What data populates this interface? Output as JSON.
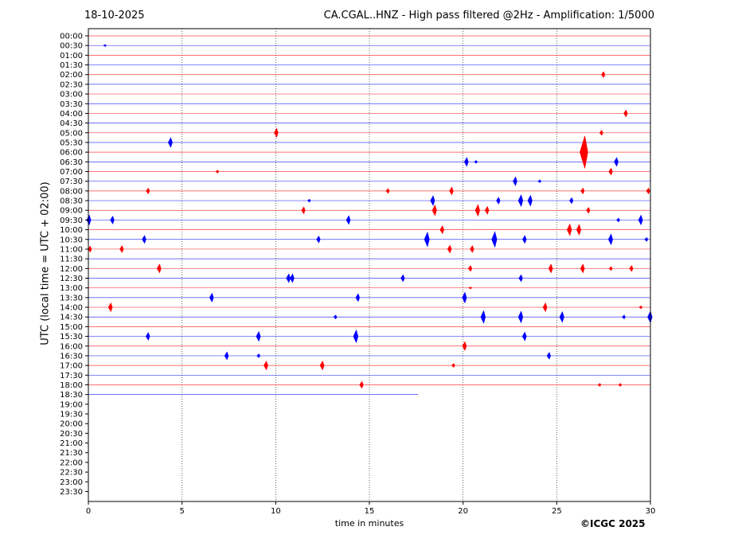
{
  "header": {
    "date": "18-10-2025",
    "title": "CA.CGAL..HNZ - High pass filtered @2Hz - Amplification: 1/5000"
  },
  "footer": {
    "copyright": "©ICGC 2025"
  },
  "chart_data": {
    "type": "line",
    "title": "CA.CGAL..HNZ - High pass filtered @2Hz - Amplification: 1/5000",
    "xlabel": "time in minutes",
    "ylabel": "UTC (local time = UTC + 02:00)",
    "xlim": [
      0,
      30
    ],
    "xticks": [
      0,
      5,
      10,
      15,
      20,
      25,
      30
    ],
    "vertical_gridlines": [
      5,
      10,
      15,
      20,
      25
    ],
    "grid": "vertical dotted",
    "colors": {
      "even_row": "#ff0000",
      "odd_row": "#0000ff"
    },
    "rows": [
      "00:00",
      "00:30",
      "01:00",
      "01:30",
      "02:00",
      "02:30",
      "03:00",
      "03:30",
      "04:00",
      "04:30",
      "05:00",
      "05:30",
      "06:00",
      "06:30",
      "07:00",
      "07:30",
      "08:00",
      "08:30",
      "09:00",
      "09:30",
      "10:00",
      "10:30",
      "11:00",
      "11:30",
      "12:00",
      "12:30",
      "13:00",
      "13:30",
      "14:00",
      "14:30",
      "15:00",
      "15:30",
      "16:00",
      "16:30",
      "17:00",
      "17:30",
      "18:00",
      "18:30",
      "19:00",
      "19:30",
      "20:00",
      "20:30",
      "21:00",
      "21:30",
      "22:00",
      "22:30",
      "23:00",
      "23:30"
    ],
    "recorded_until": {
      "row": "18:30",
      "minute": 17.6
    },
    "events": [
      {
        "row": "00:30",
        "minute": 0.9,
        "amp": 0.1
      },
      {
        "row": "02:00",
        "minute": 27.5,
        "amp": 0.3
      },
      {
        "row": "04:00",
        "minute": 28.7,
        "amp": 0.35
      },
      {
        "row": "05:00",
        "minute": 10.05,
        "amp": 0.45
      },
      {
        "row": "05:00",
        "minute": 27.4,
        "amp": 0.25
      },
      {
        "row": "05:30",
        "minute": 4.4,
        "amp": 0.5
      },
      {
        "row": "06:00",
        "minute": 26.5,
        "amp": 1.7
      },
      {
        "row": "06:30",
        "minute": 20.2,
        "amp": 0.45
      },
      {
        "row": "06:30",
        "minute": 20.7,
        "amp": 0.15
      },
      {
        "row": "06:30",
        "minute": 28.2,
        "amp": 0.45
      },
      {
        "row": "07:00",
        "minute": 6.9,
        "amp": 0.15
      },
      {
        "row": "07:00",
        "minute": 27.9,
        "amp": 0.35
      },
      {
        "row": "07:30",
        "minute": 22.8,
        "amp": 0.45
      },
      {
        "row": "07:30",
        "minute": 24.1,
        "amp": 0.15
      },
      {
        "row": "08:00",
        "minute": 3.2,
        "amp": 0.3
      },
      {
        "row": "08:00",
        "minute": 16.0,
        "amp": 0.25
      },
      {
        "row": "08:00",
        "minute": 19.4,
        "amp": 0.4
      },
      {
        "row": "08:00",
        "minute": 26.4,
        "amp": 0.3
      },
      {
        "row": "08:00",
        "minute": 29.9,
        "amp": 0.3
      },
      {
        "row": "08:30",
        "minute": 11.8,
        "amp": 0.15
      },
      {
        "row": "08:30",
        "minute": 18.4,
        "amp": 0.5
      },
      {
        "row": "08:30",
        "minute": 21.9,
        "amp": 0.35
      },
      {
        "row": "08:30",
        "minute": 23.1,
        "amp": 0.6
      },
      {
        "row": "08:30",
        "minute": 23.6,
        "amp": 0.55
      },
      {
        "row": "08:30",
        "minute": 25.8,
        "amp": 0.3
      },
      {
        "row": "09:00",
        "minute": 11.5,
        "amp": 0.35
      },
      {
        "row": "09:00",
        "minute": 18.5,
        "amp": 0.55
      },
      {
        "row": "09:00",
        "minute": 20.8,
        "amp": 0.6
      },
      {
        "row": "09:00",
        "minute": 21.3,
        "amp": 0.4
      },
      {
        "row": "09:00",
        "minute": 26.7,
        "amp": 0.3
      },
      {
        "row": "09:30",
        "minute": 0.05,
        "amp": 0.5
      },
      {
        "row": "09:30",
        "minute": 1.3,
        "amp": 0.4
      },
      {
        "row": "09:30",
        "minute": 13.9,
        "amp": 0.45
      },
      {
        "row": "09:30",
        "minute": 28.3,
        "amp": 0.2
      },
      {
        "row": "09:30",
        "minute": 29.5,
        "amp": 0.5
      },
      {
        "row": "10:00",
        "minute": 18.9,
        "amp": 0.4
      },
      {
        "row": "10:00",
        "minute": 25.7,
        "amp": 0.6
      },
      {
        "row": "10:00",
        "minute": 26.2,
        "amp": 0.55
      },
      {
        "row": "10:30",
        "minute": 3.0,
        "amp": 0.4
      },
      {
        "row": "10:30",
        "minute": 12.3,
        "amp": 0.35
      },
      {
        "row": "10:30",
        "minute": 18.1,
        "amp": 0.75
      },
      {
        "row": "10:30",
        "minute": 21.7,
        "amp": 0.8
      },
      {
        "row": "10:30",
        "minute": 23.3,
        "amp": 0.4
      },
      {
        "row": "10:30",
        "minute": 27.9,
        "amp": 0.55
      },
      {
        "row": "10:30",
        "minute": 29.8,
        "amp": 0.2
      },
      {
        "row": "11:00",
        "minute": 0.1,
        "amp": 0.3
      },
      {
        "row": "11:00",
        "minute": 1.8,
        "amp": 0.35
      },
      {
        "row": "11:00",
        "minute": 19.3,
        "amp": 0.4
      },
      {
        "row": "11:00",
        "minute": 20.5,
        "amp": 0.35
      },
      {
        "row": "12:00",
        "minute": 3.8,
        "amp": 0.45
      },
      {
        "row": "12:00",
        "minute": 20.4,
        "amp": 0.3
      },
      {
        "row": "12:00",
        "minute": 24.7,
        "amp": 0.45
      },
      {
        "row": "12:00",
        "minute": 26.4,
        "amp": 0.45
      },
      {
        "row": "12:00",
        "minute": 27.9,
        "amp": 0.2
      },
      {
        "row": "12:00",
        "minute": 29.0,
        "amp": 0.3
      },
      {
        "row": "12:30",
        "minute": 10.7,
        "amp": 0.45
      },
      {
        "row": "12:30",
        "minute": 10.9,
        "amp": 0.45
      },
      {
        "row": "12:30",
        "minute": 16.8,
        "amp": 0.35
      },
      {
        "row": "12:30",
        "minute": 23.1,
        "amp": 0.35
      },
      {
        "row": "13:00",
        "minute": 20.4,
        "amp": 0.1
      },
      {
        "row": "13:30",
        "minute": 6.6,
        "amp": 0.45
      },
      {
        "row": "13:30",
        "minute": 14.4,
        "amp": 0.4
      },
      {
        "row": "13:30",
        "minute": 20.1,
        "amp": 0.55
      },
      {
        "row": "14:00",
        "minute": 1.2,
        "amp": 0.45
      },
      {
        "row": "14:00",
        "minute": 24.4,
        "amp": 0.45
      },
      {
        "row": "14:00",
        "minute": 29.5,
        "amp": 0.15
      },
      {
        "row": "14:30",
        "minute": 13.2,
        "amp": 0.2
      },
      {
        "row": "14:30",
        "minute": 21.1,
        "amp": 0.65
      },
      {
        "row": "14:30",
        "minute": 23.1,
        "amp": 0.6
      },
      {
        "row": "14:30",
        "minute": 25.3,
        "amp": 0.55
      },
      {
        "row": "14:30",
        "minute": 28.6,
        "amp": 0.2
      },
      {
        "row": "14:30",
        "minute": 30.0,
        "amp": 0.6
      },
      {
        "row": "15:30",
        "minute": 3.2,
        "amp": 0.4
      },
      {
        "row": "15:30",
        "minute": 9.1,
        "amp": 0.5
      },
      {
        "row": "15:30",
        "minute": 14.3,
        "amp": 0.65
      },
      {
        "row": "15:30",
        "minute": 23.3,
        "amp": 0.45
      },
      {
        "row": "16:00",
        "minute": 20.1,
        "amp": 0.45
      },
      {
        "row": "16:30",
        "minute": 7.4,
        "amp": 0.4
      },
      {
        "row": "16:30",
        "minute": 9.1,
        "amp": 0.2
      },
      {
        "row": "16:30",
        "minute": 24.6,
        "amp": 0.35
      },
      {
        "row": "17:00",
        "minute": 9.5,
        "amp": 0.45
      },
      {
        "row": "17:00",
        "minute": 12.5,
        "amp": 0.45
      },
      {
        "row": "17:00",
        "minute": 19.5,
        "amp": 0.2
      },
      {
        "row": "18:00",
        "minute": 14.6,
        "amp": 0.35
      },
      {
        "row": "18:00",
        "minute": 27.3,
        "amp": 0.15
      },
      {
        "row": "18:00",
        "minute": 28.4,
        "amp": 0.15
      }
    ]
  }
}
